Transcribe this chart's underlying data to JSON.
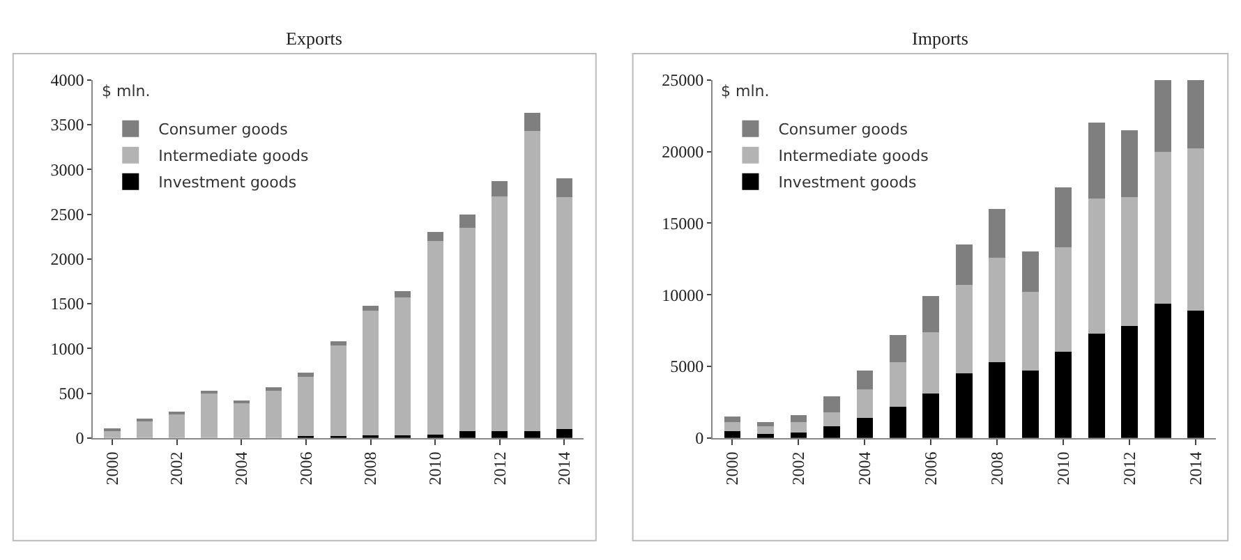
{
  "chart_data": [
    {
      "type": "bar",
      "title": "Exports",
      "ylabel": "$ mln.",
      "stacked": true,
      "legend": "top left",
      "categories": [
        "2000",
        null,
        "2002",
        null,
        "2004",
        null,
        "2006",
        null,
        "2008",
        null,
        "2010",
        null,
        "2012",
        null,
        "2014"
      ],
      "ylim": [
        0,
        4000
      ],
      "yticks": [
        0,
        500,
        1000,
        1500,
        2000,
        2500,
        3000,
        3500,
        4000
      ],
      "series": [
        {
          "name": "Investment goods",
          "color": "#000000",
          "values": [
            0,
            0,
            0,
            null,
            null,
            null,
            20,
            20,
            30,
            30,
            40,
            80,
            80,
            80,
            100
          ]
        },
        {
          "name": "Intermediate goods",
          "color": "#b3b3b3",
          "values": [
            90,
            200,
            270,
            500,
            390,
            540,
            680,
            1010,
            1390,
            1540,
            2160,
            2270,
            2620,
            3350,
            2590
          ]
        },
        {
          "name": "Consumer goods",
          "color": "#7f7f7f",
          "values": [
            10,
            20,
            20,
            20,
            20,
            30,
            30,
            50,
            60,
            70,
            100,
            150,
            170,
            200,
            210
          ]
        }
      ]
    },
    {
      "type": "bar",
      "title": "Imports",
      "ylabel": "$ mln.",
      "stacked": true,
      "legend": "top left",
      "categories": [
        "2000",
        null,
        "2002",
        null,
        "2004",
        null,
        "2006",
        null,
        "2008",
        null,
        "2010",
        null,
        "2012",
        null,
        "2014"
      ],
      "ylim": [
        0,
        25000
      ],
      "yticks": [
        0,
        5000,
        10000,
        15000,
        20000,
        25000
      ],
      "series": [
        {
          "name": "Investment goods",
          "color": "#000000",
          "values": [
            500,
            300,
            400,
            800,
            1400,
            2200,
            3100,
            4500,
            5300,
            4700,
            6000,
            7300,
            7800,
            9400,
            8900
          ]
        },
        {
          "name": "Intermediate goods",
          "color": "#b3b3b3",
          "values": [
            600,
            500,
            700,
            1000,
            2000,
            3100,
            4300,
            6200,
            7300,
            5500,
            7300,
            9400,
            9000,
            10600,
            11300
          ]
        },
        {
          "name": "Consumer goods",
          "color": "#7f7f7f",
          "values": [
            400,
            300,
            500,
            1100,
            1300,
            1900,
            2500,
            2800,
            3400,
            2800,
            4200,
            5300,
            4700,
            5000,
            4800
          ]
        }
      ]
    }
  ]
}
